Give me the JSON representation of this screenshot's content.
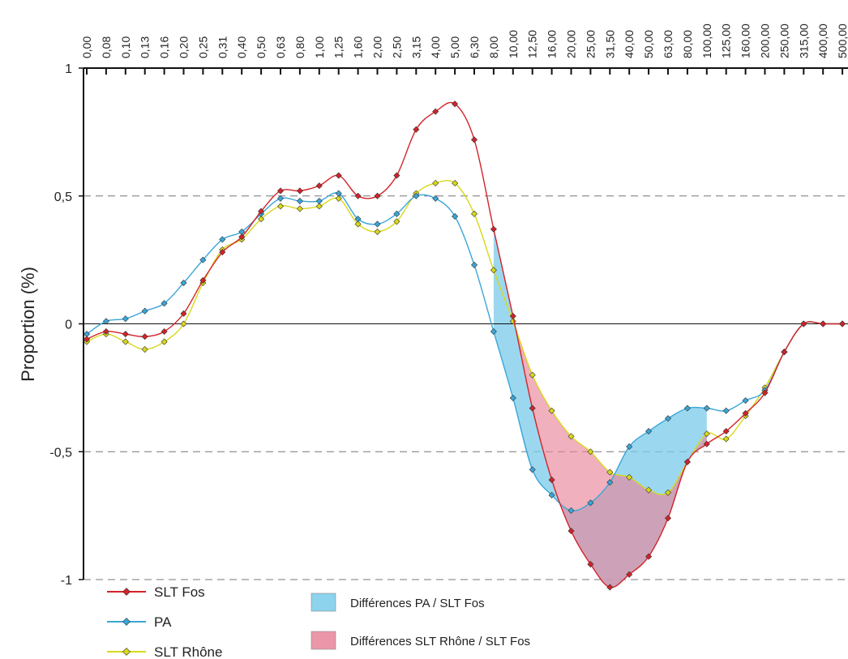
{
  "chart_data": {
    "type": "line",
    "ylabel": "Proportion (%)",
    "xlabel": "",
    "ylim": [
      -1,
      1
    ],
    "yticks": [
      {
        "value": 1,
        "label": "1"
      },
      {
        "value": 0.5,
        "label": "0,5"
      },
      {
        "value": 0,
        "label": "0"
      },
      {
        "value": -0.5,
        "label": "-0,5"
      },
      {
        "value": -1,
        "label": "-1"
      }
    ],
    "grid": "dashed horizontal at 0.5 and -0.5 and -1",
    "categories": [
      "0,00",
      "0,08",
      "0,10",
      "0,13",
      "0,16",
      "0,20",
      "0,25",
      "0,31",
      "0,40",
      "0,50",
      "0,63",
      "0,80",
      "1,00",
      "1,25",
      "1,60",
      "2,00",
      "2,50",
      "3,15",
      "4,00",
      "5,00",
      "6,30",
      "8,00",
      "10,00",
      "12,50",
      "16,00",
      "20,00",
      "25,00",
      "31,50",
      "40,00",
      "50,00",
      "63,00",
      "80,00",
      "100,00",
      "125,00",
      "160,00",
      "200,00",
      "250,00",
      "315,00",
      "400,00",
      "500,00"
    ],
    "series": [
      {
        "name": "SLT Fos",
        "color": "#d2232a",
        "marker": "diamond",
        "values": [
          -0.06,
          -0.03,
          -0.04,
          -0.05,
          -0.03,
          0.04,
          0.17,
          0.28,
          0.34,
          0.44,
          0.52,
          0.52,
          0.54,
          0.58,
          0.5,
          0.5,
          0.58,
          0.76,
          0.83,
          0.86,
          0.72,
          0.37,
          0.03,
          -0.33,
          -0.61,
          -0.81,
          -0.94,
          -1.03,
          -0.98,
          -0.91,
          -0.76,
          -0.54,
          -0.47,
          -0.42,
          -0.35,
          -0.27,
          -0.11,
          0.0,
          0.0,
          0.0
        ]
      },
      {
        "name": "PA",
        "color": "#3aa6d8",
        "marker": "diamond",
        "values": [
          -0.04,
          0.01,
          0.02,
          0.05,
          0.08,
          0.16,
          0.25,
          0.33,
          0.36,
          0.43,
          0.49,
          0.48,
          0.48,
          0.51,
          0.41,
          0.39,
          0.43,
          0.5,
          0.49,
          0.42,
          0.23,
          -0.03,
          -0.29,
          -0.57,
          -0.67,
          -0.73,
          -0.7,
          -0.62,
          -0.48,
          -0.42,
          -0.37,
          -0.33,
          -0.33,
          -0.34,
          -0.3,
          -0.26,
          -0.11,
          0.0,
          0.0,
          0.0
        ]
      },
      {
        "name": "SLT Rhône",
        "color": "#d8d81a",
        "marker": "diamond",
        "values": [
          -0.07,
          -0.04,
          -0.07,
          -0.1,
          -0.07,
          0.0,
          0.16,
          0.29,
          0.33,
          0.41,
          0.46,
          0.45,
          0.46,
          0.49,
          0.39,
          0.36,
          0.4,
          0.51,
          0.55,
          0.55,
          0.43,
          0.21,
          0.01,
          -0.2,
          -0.34,
          -0.44,
          -0.5,
          -0.58,
          -0.6,
          -0.65,
          -0.66,
          -0.54,
          -0.43,
          -0.45,
          -0.36,
          -0.25,
          -0.11,
          0.0,
          0.0,
          0.0
        ]
      }
    ],
    "areas": [
      {
        "name": "Différences PA / SLT Fos",
        "color": "#79cbea"
      },
      {
        "name": "Différences SLT Rhône / SLT Fos",
        "color": "#e8859a"
      }
    ],
    "legend": "bottom-left"
  }
}
